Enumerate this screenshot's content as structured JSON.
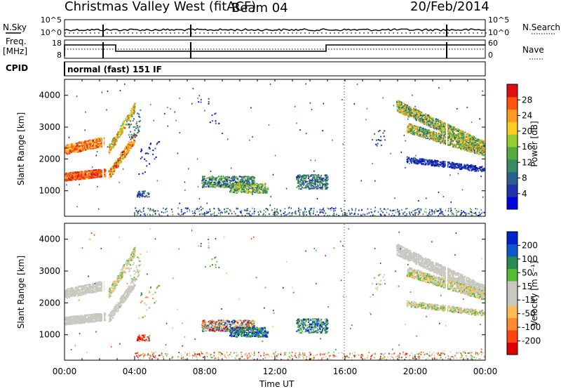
{
  "header": {
    "station": "Christmas Valley West (fitACF)",
    "beam": "Beam 04",
    "date": "20/Feb/2014"
  },
  "left_labels": {
    "nsky": "N.Sky",
    "freq_line1": "Freq.",
    "freq_line2": "[MHz]",
    "cpid": "CPID"
  },
  "right_labels": {
    "nsearch": "N.Search",
    "nave": "Nave"
  },
  "status_row": {
    "nsky_ticks": [
      "10^5",
      "10^0"
    ],
    "nsearch_ticks": [
      "10^5",
      "10^0"
    ],
    "freq_ticks": [
      "18",
      "8"
    ],
    "nave_ticks": [
      "60",
      "0"
    ]
  },
  "cpid_text": "normal (fast) 151 IF",
  "chart_data": [
    {
      "type": "heatmap",
      "panel": "power",
      "xlabel": "",
      "ylabel": "Slant Range [km]",
      "yticks": [
        "1000",
        "2000",
        "3000",
        "4000"
      ],
      "ylim": [
        200,
        4500
      ],
      "xlim": [
        0,
        24
      ],
      "colorbar": {
        "label": "Power [dB]",
        "ticks": [
          "4",
          "8",
          "12",
          "16",
          "20",
          "24",
          "28"
        ],
        "range": [
          0,
          32
        ],
        "colors": [
          "#0000dd",
          "#2233aa",
          "#2a5f8f",
          "#3a8a6a",
          "#55aa40",
          "#99cc33",
          "#ffcc22",
          "#ff9922",
          "#ff5511",
          "#dd1111"
        ]
      }
    },
    {
      "type": "heatmap",
      "panel": "velocity",
      "xlabel": "Time UT",
      "ylabel": "Slant Range [km]",
      "yticks": [
        "1000",
        "2000",
        "3000",
        "4000"
      ],
      "ylim": [
        200,
        4500
      ],
      "xlim": [
        0,
        24
      ],
      "xticks": [
        "00:00",
        "04:00",
        "08:00",
        "12:00",
        "16:00",
        "20:00",
        "00:00"
      ],
      "colorbar": {
        "label": "Velocity [m s⁻¹]",
        "ticks": [
          "200",
          "100",
          "50",
          "15",
          "-15",
          "-50",
          "-100",
          "-200"
        ],
        "range": [
          -250,
          250
        ],
        "colors": [
          "#dd0000",
          "#ff4411",
          "#ff8833",
          "#ffbb55",
          "#c8c8c0",
          "#c8c8c0",
          "#55bb33",
          "#2a8a55",
          "#1155cc",
          "#0022cc"
        ]
      }
    }
  ]
}
